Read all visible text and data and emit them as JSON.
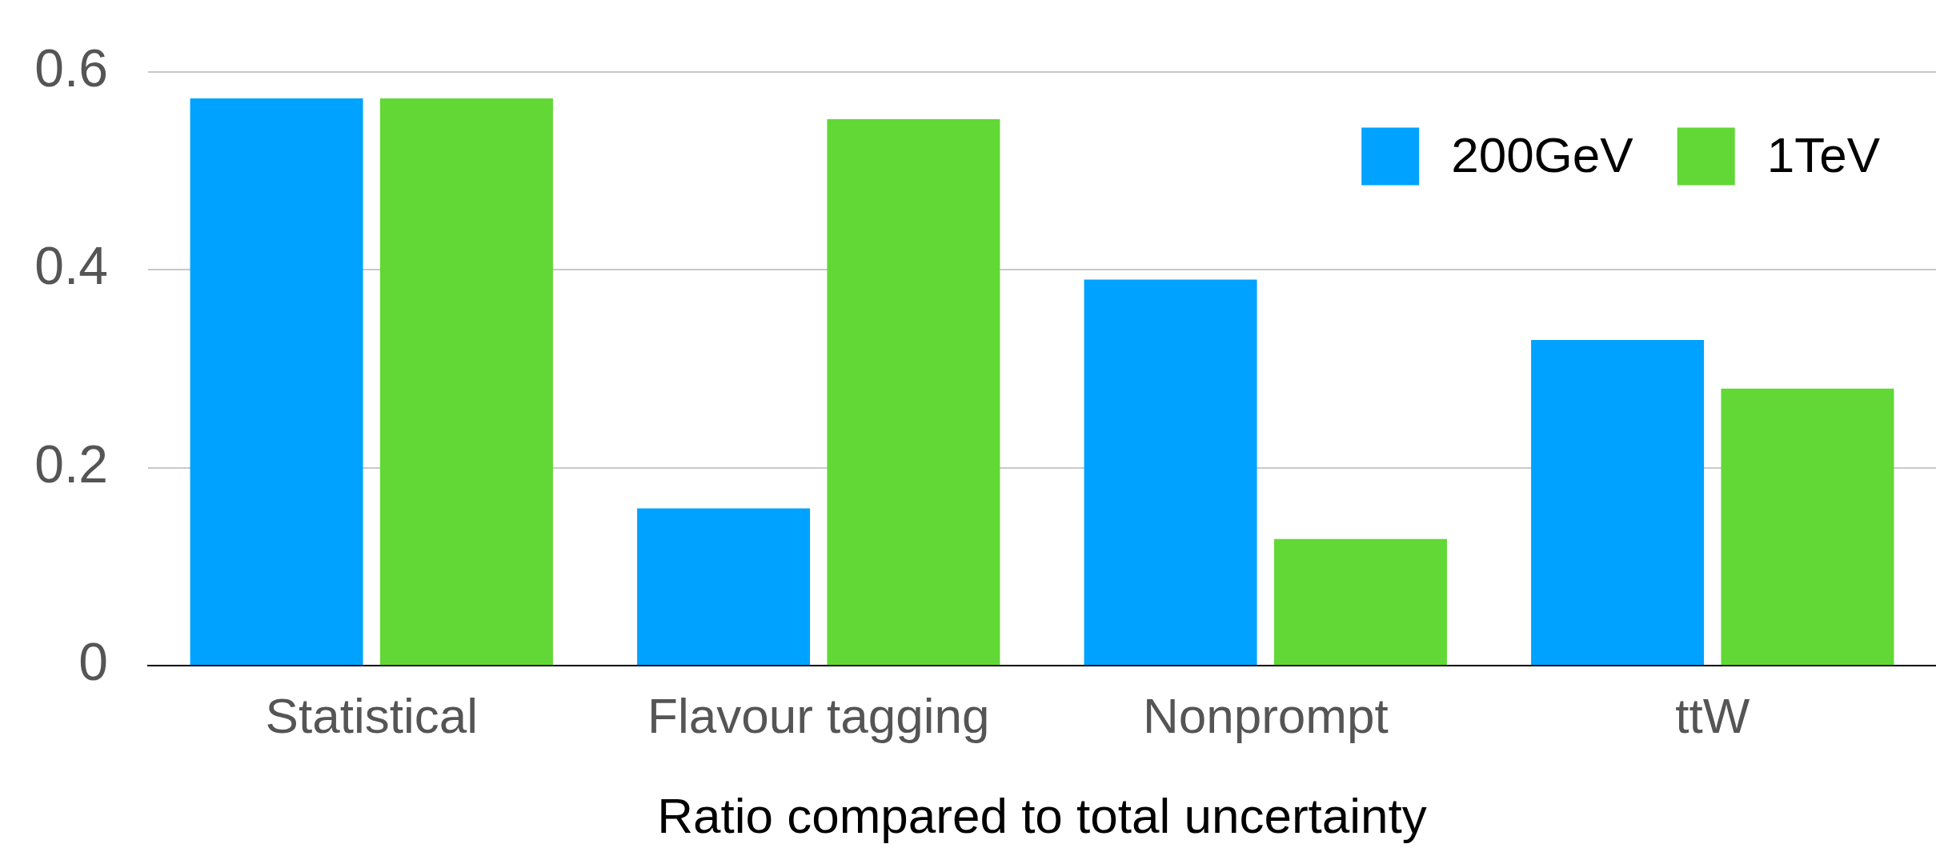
{
  "chart_data": {
    "type": "bar",
    "xlabel": "Ratio compared to total uncertainty",
    "categories": [
      "Statistical",
      "Flavour tagging",
      "Nonprompt",
      "ttW"
    ],
    "series": [
      {
        "name": "200GeV",
        "color": "#00a2ff",
        "values": [
          0.573,
          0.159,
          0.39,
          0.329
        ]
      },
      {
        "name": "1TeV",
        "color": "#61d836",
        "values": [
          0.573,
          0.552,
          0.128,
          0.28
        ]
      }
    ],
    "ylim": [
      0,
      0.6
    ],
    "yticks": [
      0,
      0.2,
      0.4,
      0.6
    ],
    "grid": "y",
    "legend": "top right"
  }
}
